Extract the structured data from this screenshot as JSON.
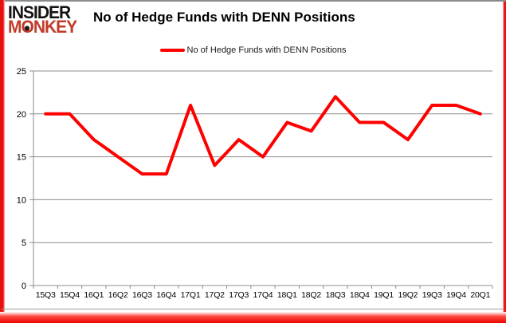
{
  "header": {
    "logo_line1": "INSIDER",
    "logo_line2_m": "M",
    "logo_line2_o": "O",
    "logo_line2_rest": "NKEY",
    "title": "No of Hedge Funds with DENN Positions"
  },
  "legend": {
    "label": "No of Hedge Funds with DENN Positions",
    "marker_color": "#ff0000"
  },
  "chart_data": {
    "type": "line",
    "title": "No of Hedge Funds with DENN Positions",
    "categories": [
      "15Q3",
      "15Q4",
      "16Q1",
      "16Q2",
      "16Q3",
      "16Q4",
      "17Q1",
      "17Q2",
      "17Q3",
      "17Q4",
      "18Q1",
      "18Q2",
      "18Q3",
      "18Q4",
      "19Q1",
      "19Q2",
      "19Q3",
      "19Q4",
      "20Q1"
    ],
    "series": [
      {
        "name": "No of Hedge Funds with DENN Positions",
        "values": [
          20,
          20,
          17,
          15,
          13,
          13,
          21,
          14,
          17,
          15,
          19,
          18,
          22,
          19,
          19,
          17,
          21,
          21,
          20
        ],
        "color": "#ff0000"
      }
    ],
    "xlabel": "",
    "ylabel": "",
    "ylim": [
      0,
      25
    ],
    "ytick_interval": 5,
    "grid": true,
    "gridline_color": "#8c8c8c",
    "axis_color": "#8c8c8c",
    "label_color": "#000000",
    "legend_position": "top-center"
  },
  "frame": {
    "border_red": "#e8100d",
    "brand_red": "#c13b2a"
  }
}
